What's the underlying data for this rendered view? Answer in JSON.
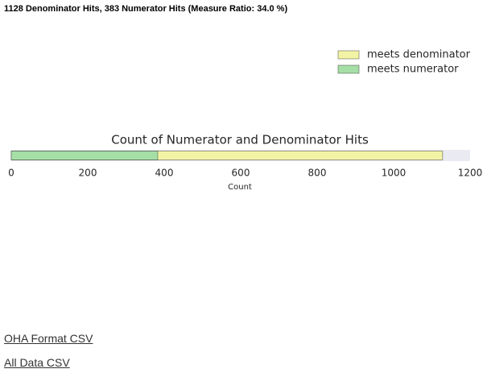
{
  "header": {
    "title": "1128 Denominator Hits, 383 Numerator Hits (Measure Ratio: 34.0 %)"
  },
  "chart_data": {
    "type": "bar",
    "orientation": "horizontal",
    "overlap": true,
    "title": "Count of Numerator and Denominator Hits",
    "xlabel": "Count",
    "categories": [
      null
    ],
    "series": [
      {
        "name": "meets denominator",
        "color": "#f3f3a6",
        "values": [
          1128
        ]
      },
      {
        "name": "meets numerator",
        "color": "#a6dfa6",
        "values": [
          383
        ]
      }
    ],
    "xlim": [
      0,
      1200
    ],
    "xticks": [
      0,
      200,
      400,
      600,
      800,
      1000,
      1200
    ],
    "legend": "upper right"
  },
  "links": [
    "OHA Format CSV",
    "All Data CSV"
  ]
}
